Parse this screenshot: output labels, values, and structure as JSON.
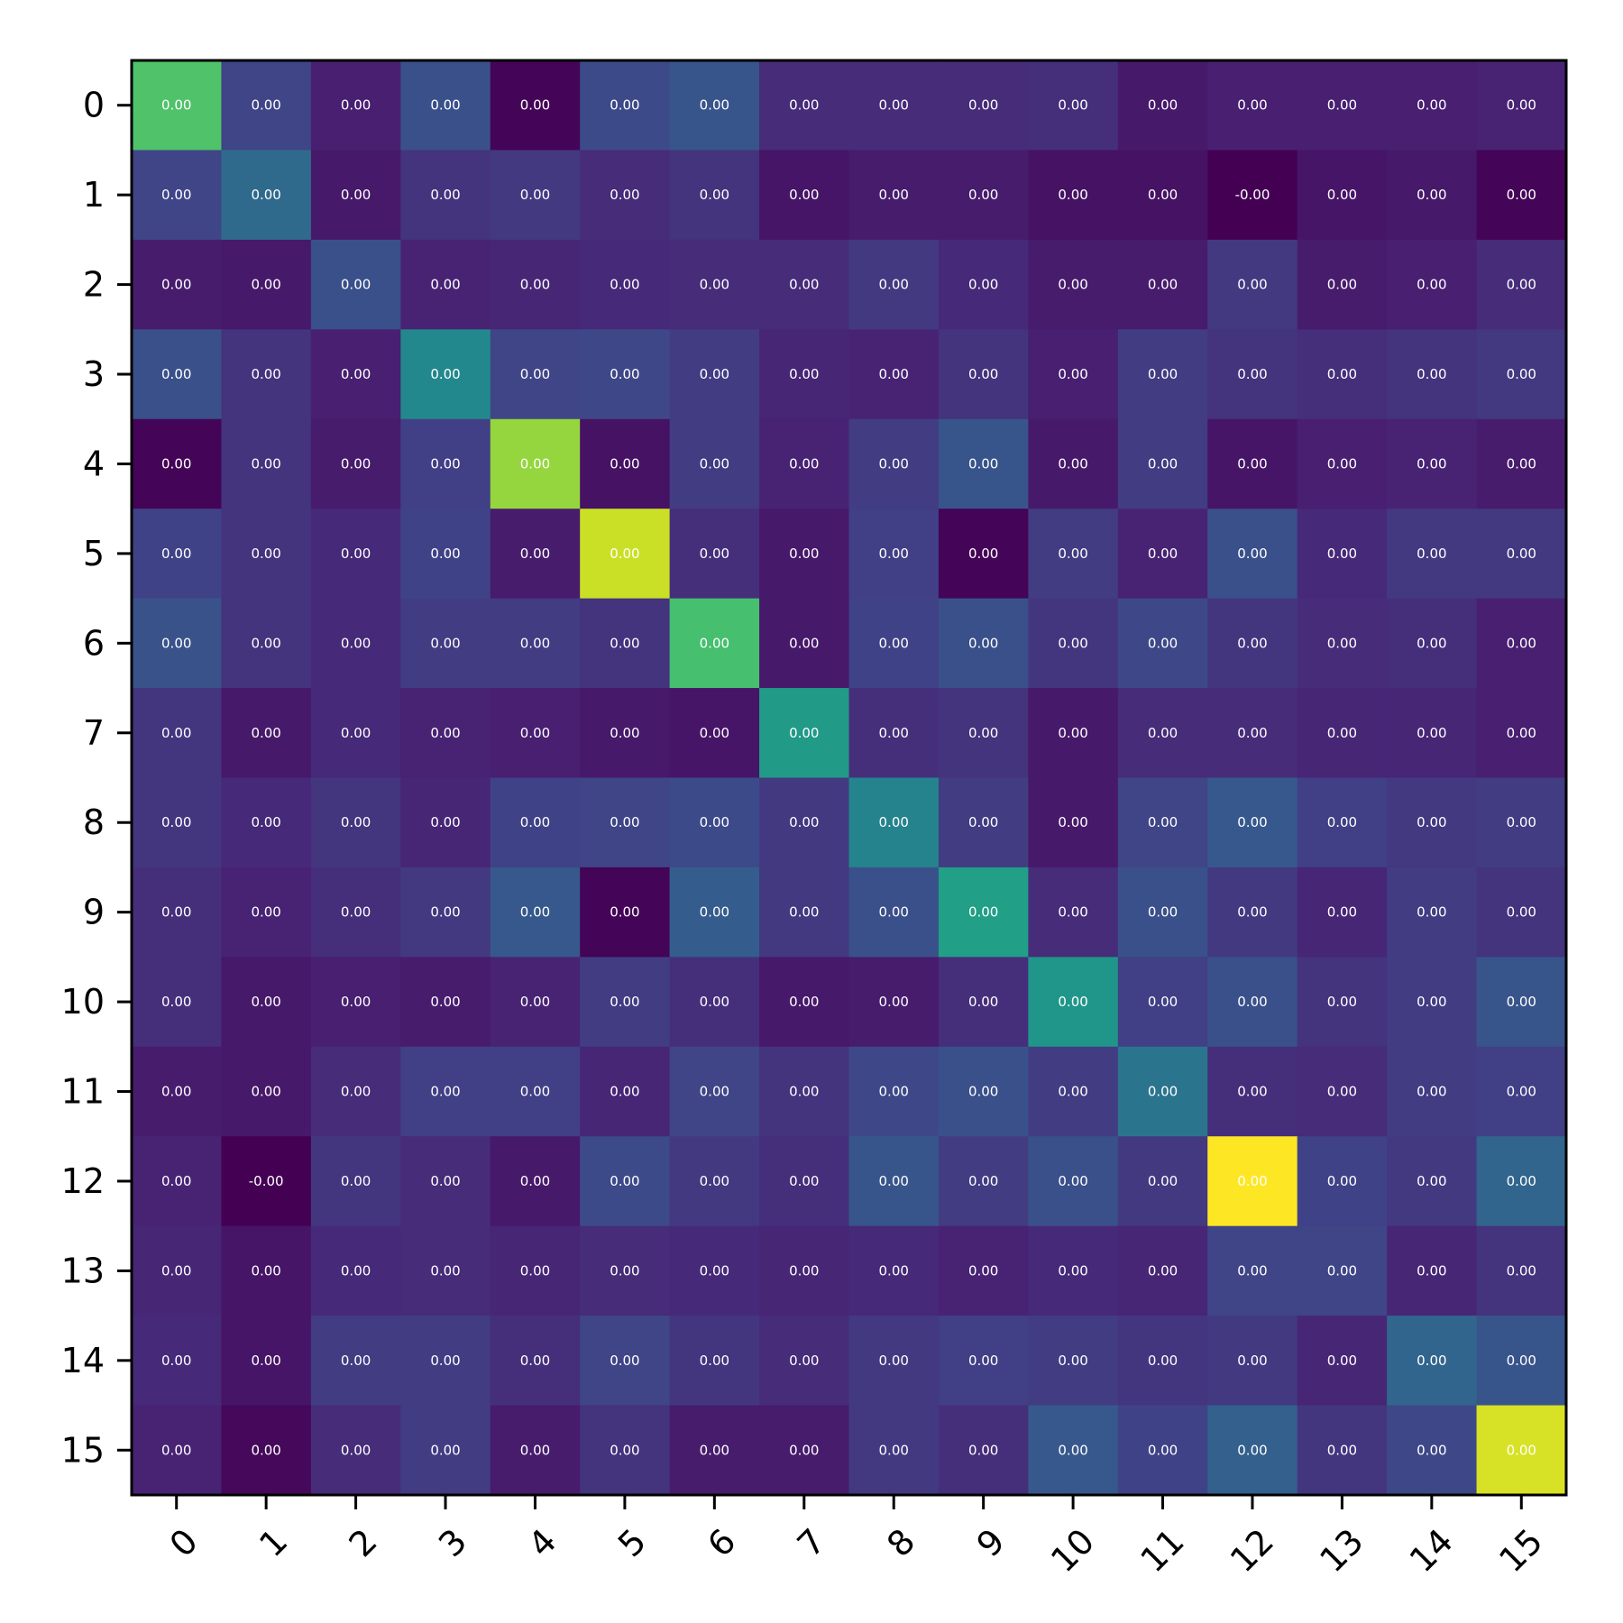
{
  "chart_data": {
    "type": "heatmap",
    "title": "",
    "xlabel": "",
    "ylabel": "",
    "x_categories": [
      "0",
      "1",
      "2",
      "3",
      "4",
      "5",
      "6",
      "7",
      "8",
      "9",
      "10",
      "11",
      "12",
      "13",
      "14",
      "15"
    ],
    "y_categories": [
      "0",
      "1",
      "2",
      "3",
      "4",
      "5",
      "6",
      "7",
      "8",
      "9",
      "10",
      "11",
      "12",
      "13",
      "14",
      "15"
    ],
    "colormap": "viridis",
    "values": [
      [
        0.72,
        0.2,
        0.08,
        0.24,
        0.0,
        0.22,
        0.26,
        0.12,
        0.12,
        0.12,
        0.13,
        0.06,
        0.08,
        0.08,
        0.08,
        0.09
      ],
      [
        0.2,
        0.34,
        0.06,
        0.14,
        0.16,
        0.12,
        0.14,
        0.05,
        0.07,
        0.07,
        0.04,
        0.04,
        -0.01,
        0.05,
        0.06,
        0.0
      ],
      [
        0.07,
        0.06,
        0.24,
        0.09,
        0.1,
        0.11,
        0.12,
        0.12,
        0.16,
        0.11,
        0.07,
        0.07,
        0.16,
        0.07,
        0.08,
        0.12
      ],
      [
        0.24,
        0.14,
        0.08,
        0.46,
        0.2,
        0.21,
        0.17,
        0.1,
        0.09,
        0.14,
        0.08,
        0.17,
        0.14,
        0.13,
        0.14,
        0.16
      ],
      [
        0.0,
        0.14,
        0.07,
        0.18,
        0.84,
        0.04,
        0.17,
        0.09,
        0.17,
        0.26,
        0.06,
        0.17,
        0.05,
        0.08,
        0.09,
        0.07
      ],
      [
        0.19,
        0.14,
        0.11,
        0.19,
        0.07,
        0.92,
        0.13,
        0.06,
        0.18,
        0.0,
        0.17,
        0.09,
        0.24,
        0.11,
        0.16,
        0.16
      ],
      [
        0.25,
        0.14,
        0.11,
        0.17,
        0.17,
        0.14,
        0.7,
        0.06,
        0.19,
        0.24,
        0.15,
        0.21,
        0.15,
        0.12,
        0.13,
        0.08
      ],
      [
        0.15,
        0.06,
        0.11,
        0.09,
        0.08,
        0.06,
        0.05,
        0.54,
        0.13,
        0.14,
        0.06,
        0.12,
        0.12,
        0.1,
        0.1,
        0.08
      ],
      [
        0.15,
        0.11,
        0.15,
        0.1,
        0.19,
        0.2,
        0.22,
        0.16,
        0.44,
        0.17,
        0.06,
        0.2,
        0.27,
        0.18,
        0.16,
        0.17
      ],
      [
        0.13,
        0.09,
        0.13,
        0.16,
        0.27,
        0.0,
        0.29,
        0.16,
        0.24,
        0.56,
        0.12,
        0.24,
        0.16,
        0.1,
        0.17,
        0.14
      ],
      [
        0.13,
        0.06,
        0.08,
        0.07,
        0.09,
        0.17,
        0.13,
        0.06,
        0.07,
        0.13,
        0.52,
        0.18,
        0.24,
        0.14,
        0.17,
        0.26
      ],
      [
        0.07,
        0.06,
        0.12,
        0.18,
        0.18,
        0.1,
        0.2,
        0.14,
        0.21,
        0.24,
        0.17,
        0.38,
        0.13,
        0.12,
        0.17,
        0.18
      ],
      [
        0.09,
        -0.01,
        0.15,
        0.12,
        0.06,
        0.22,
        0.16,
        0.13,
        0.26,
        0.17,
        0.24,
        0.16,
        1.0,
        0.19,
        0.16,
        0.32
      ],
      [
        0.1,
        0.05,
        0.11,
        0.12,
        0.1,
        0.12,
        0.11,
        0.1,
        0.11,
        0.09,
        0.11,
        0.1,
        0.2,
        0.2,
        0.1,
        0.14
      ],
      [
        0.11,
        0.05,
        0.17,
        0.17,
        0.13,
        0.2,
        0.15,
        0.12,
        0.16,
        0.18,
        0.17,
        0.15,
        0.16,
        0.1,
        0.32,
        0.26
      ],
      [
        0.09,
        0.01,
        0.12,
        0.17,
        0.07,
        0.14,
        0.07,
        0.07,
        0.16,
        0.13,
        0.27,
        0.19,
        0.3,
        0.15,
        0.21,
        0.94
      ]
    ],
    "labels": [
      [
        "0.00",
        "0.00",
        "0.00",
        "0.00",
        "0.00",
        "0.00",
        "0.00",
        "0.00",
        "0.00",
        "0.00",
        "0.00",
        "0.00",
        "0.00",
        "0.00",
        "0.00",
        "0.00"
      ],
      [
        "0.00",
        "0.00",
        "0.00",
        "0.00",
        "0.00",
        "0.00",
        "0.00",
        "0.00",
        "0.00",
        "0.00",
        "0.00",
        "0.00",
        "-0.00",
        "0.00",
        "0.00",
        "0.00"
      ],
      [
        "0.00",
        "0.00",
        "0.00",
        "0.00",
        "0.00",
        "0.00",
        "0.00",
        "0.00",
        "0.00",
        "0.00",
        "0.00",
        "0.00",
        "0.00",
        "0.00",
        "0.00",
        "0.00"
      ],
      [
        "0.00",
        "0.00",
        "0.00",
        "0.00",
        "0.00",
        "0.00",
        "0.00",
        "0.00",
        "0.00",
        "0.00",
        "0.00",
        "0.00",
        "0.00",
        "0.00",
        "0.00",
        "0.00"
      ],
      [
        "0.00",
        "0.00",
        "0.00",
        "0.00",
        "0.00",
        "0.00",
        "0.00",
        "0.00",
        "0.00",
        "0.00",
        "0.00",
        "0.00",
        "0.00",
        "0.00",
        "0.00",
        "0.00"
      ],
      [
        "0.00",
        "0.00",
        "0.00",
        "0.00",
        "0.00",
        "0.00",
        "0.00",
        "0.00",
        "0.00",
        "0.00",
        "0.00",
        "0.00",
        "0.00",
        "0.00",
        "0.00",
        "0.00"
      ],
      [
        "0.00",
        "0.00",
        "0.00",
        "0.00",
        "0.00",
        "0.00",
        "0.00",
        "0.00",
        "0.00",
        "0.00",
        "0.00",
        "0.00",
        "0.00",
        "0.00",
        "0.00",
        "0.00"
      ],
      [
        "0.00",
        "0.00",
        "0.00",
        "0.00",
        "0.00",
        "0.00",
        "0.00",
        "0.00",
        "0.00",
        "0.00",
        "0.00",
        "0.00",
        "0.00",
        "0.00",
        "0.00",
        "0.00"
      ],
      [
        "0.00",
        "0.00",
        "0.00",
        "0.00",
        "0.00",
        "0.00",
        "0.00",
        "0.00",
        "0.00",
        "0.00",
        "0.00",
        "0.00",
        "0.00",
        "0.00",
        "0.00",
        "0.00"
      ],
      [
        "0.00",
        "0.00",
        "0.00",
        "0.00",
        "0.00",
        "0.00",
        "0.00",
        "0.00",
        "0.00",
        "0.00",
        "0.00",
        "0.00",
        "0.00",
        "0.00",
        "0.00",
        "0.00"
      ],
      [
        "0.00",
        "0.00",
        "0.00",
        "0.00",
        "0.00",
        "0.00",
        "0.00",
        "0.00",
        "0.00",
        "0.00",
        "0.00",
        "0.00",
        "0.00",
        "0.00",
        "0.00",
        "0.00"
      ],
      [
        "0.00",
        "0.00",
        "0.00",
        "0.00",
        "0.00",
        "0.00",
        "0.00",
        "0.00",
        "0.00",
        "0.00",
        "0.00",
        "0.00",
        "0.00",
        "0.00",
        "0.00",
        "0.00"
      ],
      [
        "0.00",
        "-0.00",
        "0.00",
        "0.00",
        "0.00",
        "0.00",
        "0.00",
        "0.00",
        "0.00",
        "0.00",
        "0.00",
        "0.00",
        "0.00",
        "0.00",
        "0.00",
        "0.00"
      ],
      [
        "0.00",
        "0.00",
        "0.00",
        "0.00",
        "0.00",
        "0.00",
        "0.00",
        "0.00",
        "0.00",
        "0.00",
        "0.00",
        "0.00",
        "0.00",
        "0.00",
        "0.00",
        "0.00"
      ],
      [
        "0.00",
        "0.00",
        "0.00",
        "0.00",
        "0.00",
        "0.00",
        "0.00",
        "0.00",
        "0.00",
        "0.00",
        "0.00",
        "0.00",
        "0.00",
        "0.00",
        "0.00",
        "0.00"
      ],
      [
        "0.00",
        "0.00",
        "0.00",
        "0.00",
        "0.00",
        "0.00",
        "0.00",
        "0.00",
        "0.00",
        "0.00",
        "0.00",
        "0.00",
        "0.00",
        "0.00",
        "0.00",
        "0.00"
      ]
    ],
    "grid": false,
    "legend": "none",
    "colorbar": false,
    "x_tick_rotation": 45
  }
}
